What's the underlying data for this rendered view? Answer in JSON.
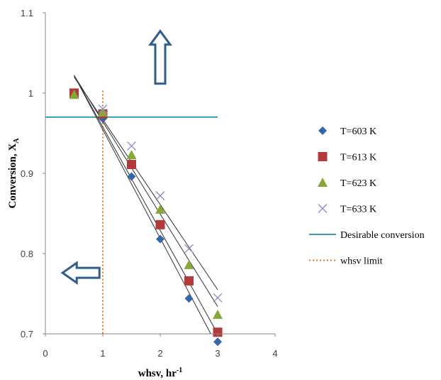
{
  "chart_data": {
    "type": "scatter",
    "xlabel": "whsv, hr",
    "xlabel_sup": "-1",
    "ylabel": "Conversion, X",
    "ylabel_sub": "A",
    "xlim": [
      0,
      4
    ],
    "ylim": [
      0.7,
      1.1
    ],
    "x_ticks": [
      "0",
      "1",
      "2",
      "3",
      "4"
    ],
    "y_ticks": [
      "0.7",
      "0.8",
      "0.9",
      "1",
      "1.1"
    ],
    "grid": false,
    "legend_position": "right",
    "series": [
      {
        "name": "T=603 K",
        "marker": "diamond",
        "color": "#3566a8",
        "x": [
          0.5,
          1.0,
          1.5,
          2.0,
          2.5,
          3.0
        ],
        "y": [
          1.0,
          0.968,
          0.896,
          0.818,
          0.744,
          0.69
        ],
        "trend": {
          "x": [
            0.5,
            2.88
          ],
          "y": [
            1.022,
            0.7
          ]
        }
      },
      {
        "name": "T=613 K",
        "marker": "square",
        "color": "#b23a3a",
        "x": [
          0.5,
          1.0,
          1.5,
          2.0,
          2.5,
          3.0
        ],
        "y": [
          1.0,
          0.974,
          0.911,
          0.836,
          0.766,
          0.702
        ],
        "trend": {
          "x": [
            0.5,
            3.0
          ],
          "y": [
            1.022,
            0.7
          ]
        }
      },
      {
        "name": "T=623 K",
        "marker": "triangle",
        "color": "#86a83a",
        "x": [
          0.5,
          1.0,
          1.5,
          2.0,
          2.5,
          3.0
        ],
        "y": [
          0.998,
          0.976,
          0.923,
          0.855,
          0.786,
          0.724
        ],
        "trend": {
          "x": [
            0.5,
            3.0
          ],
          "y": [
            1.022,
            0.734
          ]
        }
      },
      {
        "name": "T=633 K",
        "marker": "x",
        "color": "#8a8ac8",
        "x": [
          1.0,
          1.5,
          2.0,
          2.5,
          3.0
        ],
        "y": [
          0.98,
          0.934,
          0.872,
          0.806,
          0.745
        ],
        "trend": {
          "x": [
            0.5,
            3.0
          ],
          "y": [
            1.02,
            0.755
          ]
        }
      }
    ],
    "reference_lines": [
      {
        "name": "Desirable conversion",
        "orientation": "horizontal",
        "value": 0.97,
        "from": 0,
        "to": 3,
        "color": "#3a9bb5",
        "style": "solid"
      },
      {
        "name": "whsv limit",
        "orientation": "vertical",
        "value": 1,
        "color": "#e07b2a",
        "style": "dotted"
      }
    ],
    "annotations": [
      {
        "shape": "arrow-up",
        "at_x": 2.0,
        "at_y": 1.04
      },
      {
        "shape": "arrow-left",
        "at_x": 0.62,
        "at_y": 0.776
      }
    ]
  }
}
